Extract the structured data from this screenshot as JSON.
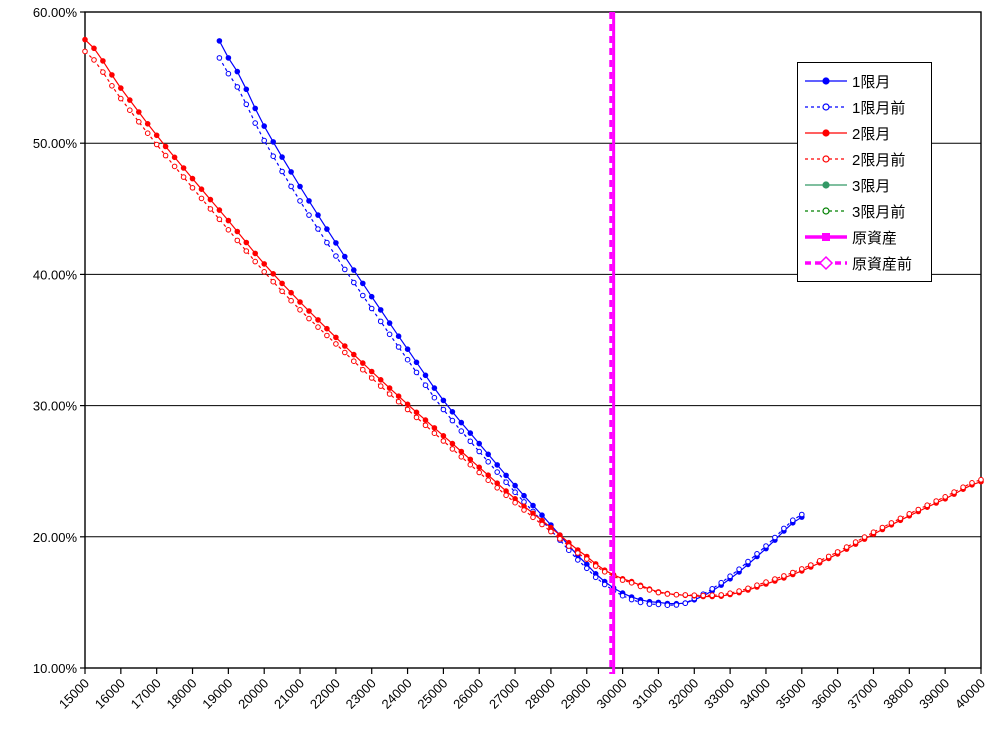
{
  "chart_data": {
    "type": "line",
    "title": "",
    "xlabel": "",
    "ylabel": "",
    "grid": "horizontal",
    "legend_position": "top-right-inside",
    "x_axis": {
      "min": 15000,
      "max": 40000,
      "tick_step": 1000,
      "tick_labels": [
        "15000",
        "16000",
        "17000",
        "18000",
        "19000",
        "20000",
        "21000",
        "22000",
        "23000",
        "24000",
        "25000",
        "26000",
        "27000",
        "28000",
        "29000",
        "30000",
        "31000",
        "32000",
        "33000",
        "34000",
        "35000",
        "36000",
        "37000",
        "38000",
        "39000",
        "40000"
      ]
    },
    "y_axis": {
      "min": 10,
      "max": 60,
      "tick_step": 10,
      "format": "percent",
      "tick_labels": [
        "10.00%",
        "20.00%",
        "30.00%",
        "40.00%",
        "50.00%",
        "60.00%"
      ]
    },
    "marker_step": 250,
    "series": [
      {
        "name": "1限月",
        "color": "#0000FF",
        "line": "solid",
        "marker": "filled-circle",
        "points": [
          [
            18750,
            57.8
          ],
          [
            19000,
            56.5
          ],
          [
            20000,
            51.3
          ],
          [
            21000,
            46.7
          ],
          [
            22000,
            42.4
          ],
          [
            23000,
            38.3
          ],
          [
            24000,
            34.3
          ],
          [
            25000,
            30.4
          ],
          [
            26000,
            27.1
          ],
          [
            27000,
            23.9
          ],
          [
            28000,
            20.9
          ],
          [
            29000,
            17.9
          ],
          [
            29750,
            16.1
          ],
          [
            30500,
            15.2
          ],
          [
            31000,
            15.0
          ],
          [
            31500,
            14.9
          ],
          [
            32000,
            15.2
          ],
          [
            33000,
            16.8
          ],
          [
            34000,
            19.1
          ],
          [
            35000,
            21.5
          ]
        ]
      },
      {
        "name": "1限月前",
        "color": "#0000FF",
        "line": "dashed",
        "marker": "open-circle",
        "points": [
          [
            18750,
            56.5
          ],
          [
            19000,
            55.3
          ],
          [
            20000,
            50.2
          ],
          [
            21000,
            45.6
          ],
          [
            22000,
            41.4
          ],
          [
            23000,
            37.4
          ],
          [
            24000,
            33.5
          ],
          [
            25000,
            29.7
          ],
          [
            26000,
            26.5
          ],
          [
            27000,
            23.4
          ],
          [
            28000,
            20.5
          ],
          [
            29000,
            17.6
          ],
          [
            29750,
            15.9
          ],
          [
            30500,
            15.0
          ],
          [
            31000,
            14.85
          ],
          [
            31500,
            14.8
          ],
          [
            32000,
            15.3
          ],
          [
            33000,
            17.0
          ],
          [
            34000,
            19.3
          ],
          [
            35000,
            21.7
          ]
        ]
      },
      {
        "name": "2限月",
        "color": "#FF0000",
        "line": "solid",
        "marker": "filled-circle",
        "points": [
          [
            15000,
            57.9
          ],
          [
            16000,
            54.2
          ],
          [
            17000,
            50.6
          ],
          [
            18000,
            47.3
          ],
          [
            19000,
            44.1
          ],
          [
            20000,
            40.8
          ],
          [
            21000,
            37.9
          ],
          [
            22000,
            35.2
          ],
          [
            23000,
            32.6
          ],
          [
            24000,
            30.1
          ],
          [
            25000,
            27.7
          ],
          [
            26000,
            25.3
          ],
          [
            27000,
            22.9
          ],
          [
            28000,
            20.7
          ],
          [
            29000,
            18.5
          ],
          [
            29750,
            17.1
          ],
          [
            30000,
            16.8
          ],
          [
            31000,
            15.8
          ],
          [
            32000,
            15.5
          ],
          [
            32500,
            15.45
          ],
          [
            33000,
            15.6
          ],
          [
            34000,
            16.4
          ],
          [
            35000,
            17.4
          ],
          [
            36000,
            18.7
          ],
          [
            37000,
            20.2
          ],
          [
            38000,
            21.6
          ],
          [
            39000,
            22.9
          ],
          [
            40000,
            24.2
          ]
        ]
      },
      {
        "name": "2限月前",
        "color": "#FF0000",
        "line": "dashed",
        "marker": "open-circle",
        "points": [
          [
            15000,
            57.0
          ],
          [
            16000,
            53.4
          ],
          [
            17000,
            49.9
          ],
          [
            18000,
            46.6
          ],
          [
            19000,
            43.4
          ],
          [
            20000,
            40.2
          ],
          [
            21000,
            37.3
          ],
          [
            22000,
            34.7
          ],
          [
            23000,
            32.1
          ],
          [
            24000,
            29.7
          ],
          [
            25000,
            27.3
          ],
          [
            26000,
            24.9
          ],
          [
            27000,
            22.6
          ],
          [
            28000,
            20.4
          ],
          [
            29000,
            18.3
          ],
          [
            29750,
            17.0
          ],
          [
            30000,
            16.7
          ],
          [
            31000,
            15.75
          ],
          [
            32000,
            15.55
          ],
          [
            32500,
            15.55
          ],
          [
            33000,
            15.7
          ],
          [
            34000,
            16.55
          ],
          [
            35000,
            17.55
          ],
          [
            36000,
            18.85
          ],
          [
            37000,
            20.35
          ],
          [
            38000,
            21.75
          ],
          [
            39000,
            23.05
          ],
          [
            40000,
            24.35
          ]
        ]
      },
      {
        "name": "3限月",
        "color": "#339966",
        "line": "solid",
        "marker": "filled-circle",
        "points": []
      },
      {
        "name": "3限月前",
        "color": "#008000",
        "line": "dashed",
        "marker": "open-circle",
        "points": []
      }
    ],
    "vlines": [
      {
        "name": "原資産",
        "x": 29750,
        "color": "#FF00FF",
        "line": "thick-solid",
        "marker": "filled-square"
      },
      {
        "name": "原資産前",
        "x": 29670,
        "color": "#FF00FF",
        "line": "thick-dashed",
        "marker": "open-diamond"
      }
    ],
    "legend_items": [
      {
        "label": "1限月",
        "color": "#0000FF",
        "line": "solid",
        "marker": "filled-circle"
      },
      {
        "label": "1限月前",
        "color": "#0000FF",
        "line": "dashed",
        "marker": "open-circle"
      },
      {
        "label": "2限月",
        "color": "#FF0000",
        "line": "solid",
        "marker": "filled-circle"
      },
      {
        "label": "2限月前",
        "color": "#FF0000",
        "line": "dashed",
        "marker": "open-circle"
      },
      {
        "label": "3限月",
        "color": "#339966",
        "line": "solid",
        "marker": "filled-circle"
      },
      {
        "label": "3限月前",
        "color": "#008000",
        "line": "dashed",
        "marker": "open-circle"
      },
      {
        "label": "原資産",
        "color": "#FF00FF",
        "line": "thick-solid",
        "marker": "filled-square"
      },
      {
        "label": "原資産前",
        "color": "#FF00FF",
        "line": "thick-dashed",
        "marker": "open-diamond"
      }
    ]
  }
}
